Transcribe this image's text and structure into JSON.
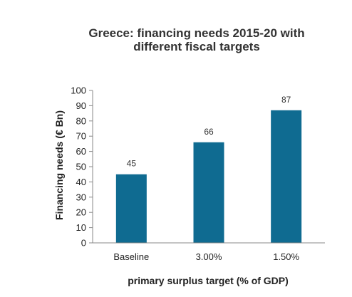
{
  "chart_data": {
    "type": "bar",
    "title": [
      "Greece: financing needs 2015-20 with",
      "different fiscal targets"
    ],
    "categories": [
      "Baseline",
      "3.00%",
      "1.50%"
    ],
    "values": [
      45,
      66,
      87
    ],
    "data_labels": [
      "45",
      "66",
      "87"
    ],
    "ylabel": "Financing needs (€ Bn)",
    "xlabel": "primary surplus target (% of GDP)",
    "ylim": [
      0,
      100
    ],
    "y_ticks": [
      0,
      10,
      20,
      30,
      40,
      50,
      60,
      70,
      80,
      90,
      100
    ],
    "grid": false,
    "legend": "none",
    "colors": {
      "bar": "#0f6b91",
      "axis": "#888888"
    }
  }
}
